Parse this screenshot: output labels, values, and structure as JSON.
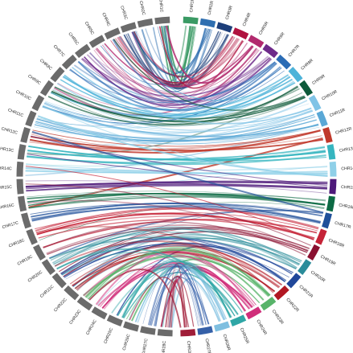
{
  "diagram": {
    "left_label_color": "#6b6b6b",
    "left_chromosomes": [
      "CHR1C",
      "CHR2C",
      "CHR3C",
      "CHR4C",
      "CHR5C",
      "CHR6C",
      "CHR7C",
      "CHR8C",
      "CHR9C",
      "CHR10C",
      "CHR11C",
      "CHR12C",
      "CHR13C",
      "CHR14C",
      "CHR15C",
      "CHR16C",
      "CHR17C",
      "CHR18C",
      "CHR19C",
      "CHR20C",
      "CHR21C",
      "CHR22C",
      "CHR23C",
      "CHR24C",
      "CHR25C",
      "CHR26C",
      "CHR27C",
      "CHR28C"
    ],
    "right_chromosomes": [
      {
        "name": "CHR1R",
        "color": "#3a9a64"
      },
      {
        "name": "CHR2R",
        "color": "#2f6fb0"
      },
      {
        "name": "CHR3R",
        "color": "#1d3f7a"
      },
      {
        "name": "CHR4R",
        "color": "#b0123f"
      },
      {
        "name": "CHR5R",
        "color": "#b22a6e"
      },
      {
        "name": "CHR6R",
        "color": "#6e2a8a"
      },
      {
        "name": "CHR7R",
        "color": "#2b6cb5"
      },
      {
        "name": "CHR8R",
        "color": "#4db3d9"
      },
      {
        "name": "CHR9R",
        "color": "#0e5a3a"
      },
      {
        "name": "CHR10R",
        "color": "#7fc3e6"
      },
      {
        "name": "CHR11R",
        "color": "#5aa8d6"
      },
      {
        "name": "CHR12R",
        "color": "#c0392b"
      },
      {
        "name": "CHR13R",
        "color": "#36b5bf"
      },
      {
        "name": "CHR14R",
        "color": "#8fd0e8"
      },
      {
        "name": "CHR15R",
        "color": "#4e1a7a"
      },
      {
        "name": "CHR16R",
        "color": "#0c6a44"
      },
      {
        "name": "CHR17R",
        "color": "#1f4f9a"
      },
      {
        "name": "CHR18R",
        "color": "#c52337"
      },
      {
        "name": "CHR19R",
        "color": "#8a1030"
      },
      {
        "name": "CHR20R",
        "color": "#2a8c9a"
      },
      {
        "name": "CHR21R",
        "color": "#20479a"
      },
      {
        "name": "CHR22R",
        "color": "#b11722"
      },
      {
        "name": "CHR23R",
        "color": "#58b46a"
      },
      {
        "name": "CHR24R",
        "color": "#d02e7a"
      },
      {
        "name": "CHR25R",
        "color": "#2fa6a6"
      },
      {
        "name": "CHR26R",
        "color": "#7fbfe0"
      },
      {
        "name": "CHR27R",
        "color": "#3560a8"
      },
      {
        "name": "CHR28R",
        "color": "#a01d38"
      }
    ]
  }
}
